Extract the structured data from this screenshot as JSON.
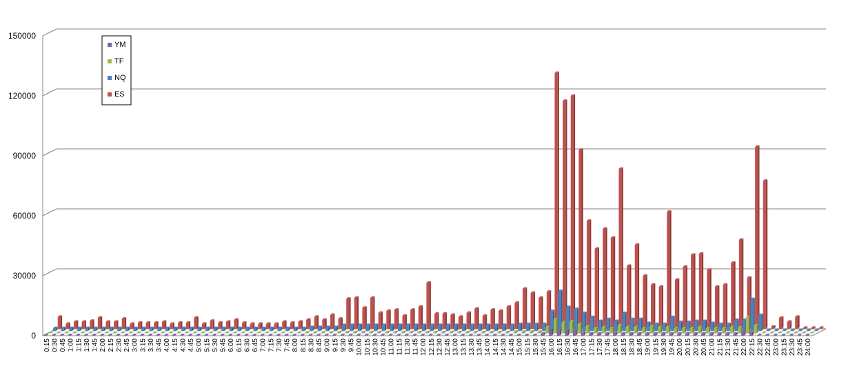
{
  "chart_data": {
    "type": "bar",
    "title": "",
    "xlabel": "",
    "ylabel": "",
    "ylim": [
      0,
      150000
    ],
    "yticks": [
      0,
      30000,
      60000,
      90000,
      120000,
      150000
    ],
    "grid": true,
    "legend_position": "top-left",
    "categories": [
      "0:15",
      "0:30",
      "0:45",
      "1:00",
      "1:15",
      "1:30",
      "1:45",
      "2:00",
      "2:15",
      "2:30",
      "2:45",
      "3:00",
      "3:15",
      "3:30",
      "3:45",
      "4:00",
      "4:15",
      "4:30",
      "4:45",
      "5:00",
      "5:15",
      "5:30",
      "5:45",
      "6:00",
      "6:15",
      "6:30",
      "6:45",
      "7:00",
      "7:15",
      "7:30",
      "7:45",
      "8:00",
      "8:15",
      "8:30",
      "8:45",
      "9:00",
      "9:15",
      "9:30",
      "9:45",
      "10:00",
      "10:15",
      "10:30",
      "10:45",
      "11:00",
      "11:15",
      "11:30",
      "11:45",
      "12:00",
      "12:15",
      "12:30",
      "12:45",
      "13:00",
      "13:15",
      "13:30",
      "13:45",
      "14:00",
      "14:15",
      "14:30",
      "14:45",
      "15:00",
      "15:15",
      "15:30",
      "15:45",
      "16:00",
      "16:15",
      "16:30",
      "16:45",
      "17:00",
      "17:15",
      "17:30",
      "17:45",
      "18:00",
      "18:15",
      "18:30",
      "18:45",
      "19:00",
      "19:15",
      "19:30",
      "19:45",
      "20:00",
      "20:15",
      "20:30",
      "20:45",
      "21:00",
      "21:15",
      "21:30",
      "21:45",
      "22:00",
      "22:15",
      "22:30",
      "22:45",
      "23:00",
      "23:15",
      "23:30",
      "23:45",
      "24:00"
    ],
    "series": [
      {
        "name": "ES",
        "color": "#c0504d",
        "values": [
          6000,
          2500,
          3500,
          3500,
          4000,
          5500,
          3500,
          3500,
          5000,
          2500,
          3000,
          3000,
          3000,
          3500,
          2500,
          3000,
          3000,
          5500,
          2500,
          4000,
          3000,
          3500,
          4500,
          3000,
          2500,
          2500,
          2500,
          2500,
          3500,
          3000,
          3500,
          4500,
          6000,
          4500,
          7000,
          5000,
          15000,
          15500,
          10500,
          15500,
          8000,
          9000,
          9500,
          6500,
          9500,
          11000,
          23000,
          7500,
          7500,
          7000,
          6000,
          8000,
          10000,
          6500,
          9500,
          9000,
          11000,
          13000,
          20000,
          18000,
          15500,
          18500,
          128000,
          114000,
          116500,
          89500,
          54000,
          40000,
          50000,
          45500,
          80000,
          31500,
          42000,
          26500,
          22000,
          21000,
          58500,
          24500,
          31000,
          37000,
          37500,
          29500,
          21000,
          22000,
          33000,
          44500,
          25500,
          91000,
          74000,
          1000,
          5500,
          3500,
          6000,
          500,
          500,
          500
        ]
      },
      {
        "name": "NQ",
        "color": "#4f81bd",
        "values": [
          1500,
          1500,
          1500,
          1500,
          1500,
          1500,
          1500,
          1500,
          1500,
          1500,
          1500,
          1500,
          1500,
          1500,
          1500,
          1500,
          1500,
          1500,
          1500,
          1500,
          1500,
          1500,
          1500,
          1500,
          1500,
          1500,
          1500,
          1500,
          1500,
          1500,
          1500,
          1500,
          2000,
          2000,
          2000,
          2000,
          3000,
          3000,
          3000,
          3000,
          3000,
          3000,
          3000,
          3000,
          3000,
          3000,
          3000,
          3000,
          3000,
          3000,
          3000,
          3000,
          3000,
          3000,
          3000,
          3000,
          3000,
          3000,
          3500,
          3500,
          3500,
          3500,
          10000,
          20000,
          12000,
          11000,
          9000,
          7000,
          5000,
          6000,
          5000,
          9000,
          6000,
          6000,
          4000,
          3500,
          3500,
          7000,
          4500,
          4500,
          5000,
          5000,
          4000,
          3500,
          3500,
          5500,
          5500,
          16000,
          8000,
          500,
          500,
          500,
          500,
          500,
          500,
          500
        ]
      },
      {
        "name": "TF",
        "color": "#9bbb59",
        "values": [
          300,
          300,
          300,
          300,
          300,
          300,
          300,
          300,
          300,
          300,
          300,
          300,
          300,
          300,
          300,
          300,
          300,
          300,
          300,
          300,
          300,
          300,
          300,
          300,
          300,
          300,
          300,
          300,
          300,
          300,
          300,
          300,
          400,
          400,
          400,
          400,
          600,
          600,
          600,
          600,
          600,
          600,
          600,
          600,
          600,
          600,
          600,
          600,
          600,
          600,
          600,
          600,
          600,
          600,
          600,
          600,
          600,
          600,
          800,
          800,
          800,
          800,
          3000,
          7000,
          5500,
          6000,
          4500,
          3500,
          2500,
          3000,
          2500,
          4000,
          3000,
          3000,
          2500,
          3500,
          3000,
          3000,
          2500,
          2500,
          2500,
          3000,
          2500,
          2500,
          2500,
          3000,
          3000,
          8000,
          4000,
          200,
          200,
          200,
          200,
          200,
          200,
          200
        ]
      },
      {
        "name": "YM",
        "color": "#8064a2",
        "values": [
          0,
          0,
          0,
          0,
          0,
          0,
          0,
          0,
          0,
          0,
          0,
          0,
          0,
          0,
          0,
          0,
          0,
          0,
          0,
          0,
          0,
          0,
          0,
          0,
          0,
          0,
          0,
          0,
          0,
          0,
          0,
          0,
          0,
          0,
          0,
          0,
          200,
          200,
          200,
          200,
          200,
          200,
          200,
          200,
          200,
          200,
          200,
          200,
          200,
          200,
          200,
          200,
          200,
          200,
          200,
          200,
          200,
          200,
          200,
          200,
          200,
          200,
          1000,
          3000,
          2500,
          2500,
          2000,
          1500,
          1000,
          1000,
          1000,
          1500,
          1000,
          1000,
          1000,
          1000,
          1000,
          1000,
          1000,
          1000,
          1000,
          1000,
          1000,
          1000,
          1000,
          1000,
          1000,
          2000,
          1500,
          0,
          0,
          0,
          0,
          0,
          0,
          0
        ]
      }
    ],
    "legend": [
      {
        "name": "YM",
        "color": "#8064a2"
      },
      {
        "name": "TF",
        "color": "#9bbb59"
      },
      {
        "name": "NQ",
        "color": "#4f81bd"
      },
      {
        "name": "ES",
        "color": "#c0504d"
      }
    ]
  }
}
